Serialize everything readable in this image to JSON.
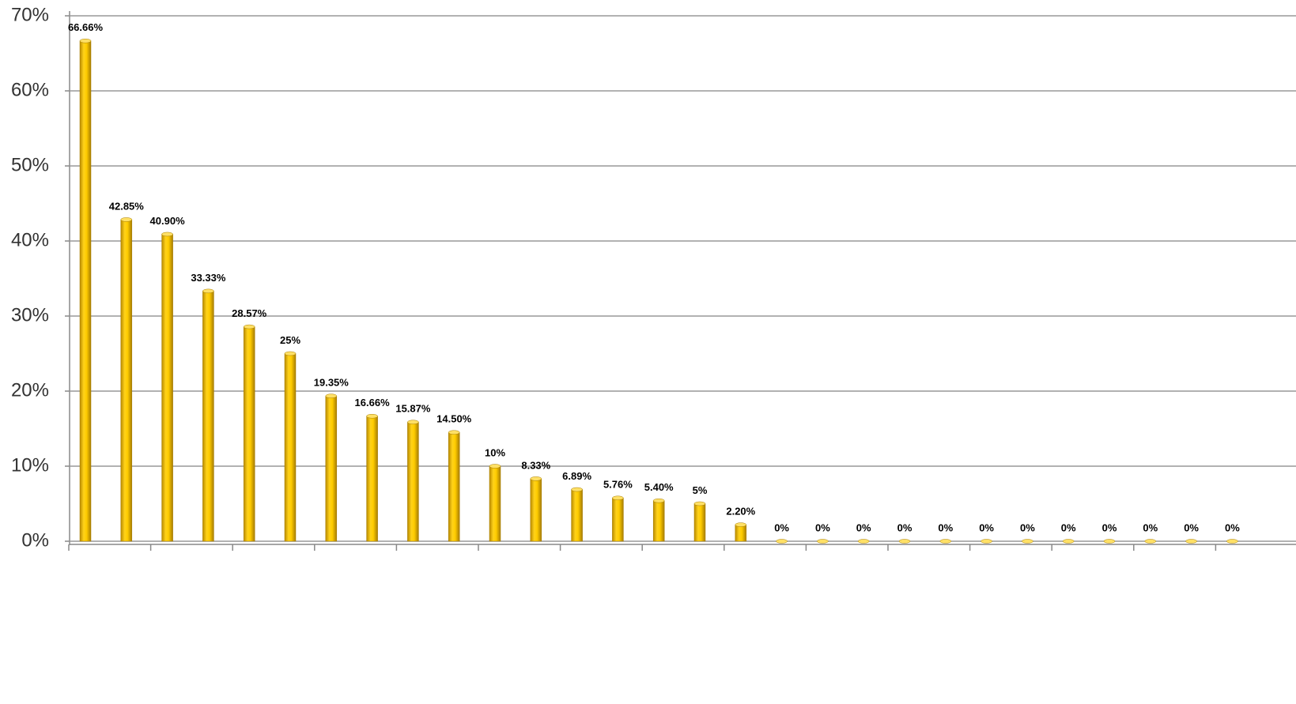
{
  "chart_data": {
    "type": "bar",
    "categories": [
      null,
      null,
      null,
      null,
      null,
      null,
      null,
      null,
      null,
      null,
      null,
      null,
      null,
      null,
      null,
      null,
      null,
      null,
      null,
      null,
      null,
      null,
      null,
      null,
      null,
      null,
      null,
      null,
      null
    ],
    "values": [
      66.66,
      42.85,
      40.9,
      33.33,
      28.57,
      25,
      19.35,
      16.66,
      15.87,
      14.5,
      10,
      8.33,
      6.89,
      5.76,
      5.4,
      5,
      2.2,
      0,
      0,
      0,
      0,
      0,
      0,
      0,
      0,
      0,
      0,
      0,
      0
    ],
    "value_labels": [
      "66.66%",
      "42.85%",
      "40.90%",
      "33.33%",
      "28.57%",
      "25%",
      "19.35%",
      "16.66%",
      "15.87%",
      "14.50%",
      "10%",
      "8.33%",
      "6.89%",
      "5.76%",
      "5.40%",
      "5%",
      "2.20%",
      "0%",
      "0%",
      "0%",
      "0%",
      "0%",
      "0%",
      "0%",
      "0%",
      "0%",
      "0%",
      "0%",
      "0%"
    ],
    "color": "#f5b800",
    "ylim": [
      0,
      70
    ],
    "yticks": [
      {
        "value": 0,
        "label": "0%"
      },
      {
        "value": 10,
        "label": "10%"
      },
      {
        "value": 20,
        "label": "20%"
      },
      {
        "value": 30,
        "label": "30%"
      },
      {
        "value": 40,
        "label": "40%"
      },
      {
        "value": 50,
        "label": "50%"
      },
      {
        "value": 60,
        "label": "60%"
      },
      {
        "value": 70,
        "label": "70%"
      }
    ],
    "grid": true
  }
}
